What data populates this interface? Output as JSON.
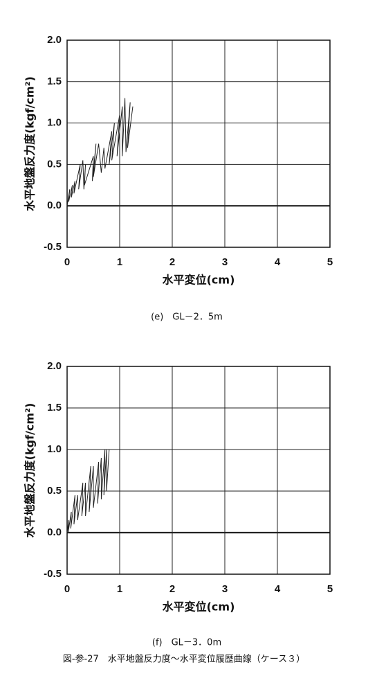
{
  "chart_data": [
    {
      "type": "line",
      "title": "(e)　GL－2．5m",
      "xlabel": "水平変位(cm)",
      "ylabel": "水平地盤反力度(kgf/cm²)",
      "xlim": [
        0,
        5
      ],
      "xticks": [
        0,
        1,
        2,
        3,
        4,
        5
      ],
      "ylim": [
        -0.5,
        2
      ],
      "yticks": [
        -0.5,
        {
          "value": 0,
          "label": "0.0"
        },
        0.5,
        {
          "value": 1,
          "label": "1.0"
        },
        1.5,
        {
          "value": 2,
          "label": "2.0"
        }
      ],
      "grid": true,
      "series": [
        {
          "color": "#222222",
          "x": [
            0,
            0.05,
            0.03,
            0.1,
            0.08,
            0.15,
            0.13,
            0.25,
            0.22,
            0.3,
            0.32,
            0.35,
            0.33,
            0.5,
            0.48,
            0.55,
            0.5,
            0.6,
            0.65,
            0.7,
            0.72,
            0.85,
            0.8,
            0.9,
            0.85,
            1.0,
            0.95,
            1.05,
            1.05,
            1.1,
            1.12,
            1.2,
            1.15,
            1.25
          ],
          "values": [
            0,
            0.2,
            0.05,
            0.25,
            0.1,
            0.3,
            0.15,
            0.5,
            0.2,
            0.55,
            0.2,
            0.5,
            0.25,
            0.6,
            0.3,
            0.75,
            0.35,
            0.75,
            0.4,
            0.7,
            0.45,
            0.9,
            0.5,
            1.0,
            0.55,
            1.1,
            0.6,
            1.2,
            0.6,
            1.3,
            0.65,
            1.25,
            0.7,
            1.2
          ]
        }
      ]
    },
    {
      "type": "line",
      "title": "(f)　GL－3．0m",
      "xlabel": "水平変位(cm)",
      "ylabel": "水平地盤反力度(kgf/cm²)",
      "xlim": [
        0,
        5
      ],
      "xticks": [
        0,
        1,
        2,
        3,
        4,
        5
      ],
      "ylim": [
        -0.5,
        2
      ],
      "yticks": [
        -0.5,
        {
          "value": 0,
          "label": "0.0"
        },
        0.5,
        {
          "value": 1,
          "label": "1.0"
        },
        1.5,
        {
          "value": 2,
          "label": "2.0"
        }
      ],
      "grid": true,
      "series": [
        {
          "color": "#222222",
          "x": [
            0,
            0.03,
            0.02,
            0.08,
            0.07,
            0.15,
            0.13,
            0.2,
            0.2,
            0.3,
            0.28,
            0.35,
            0.35,
            0.45,
            0.42,
            0.5,
            0.5,
            0.6,
            0.58,
            0.65,
            0.65,
            0.72,
            0.7,
            0.75,
            0.75,
            0.8
          ],
          "values": [
            0,
            0.15,
            0.0,
            0.25,
            0.05,
            0.45,
            0.1,
            0.45,
            0.15,
            0.6,
            0.2,
            0.6,
            0.2,
            0.8,
            0.25,
            0.8,
            0.3,
            0.85,
            0.35,
            0.9,
            0.4,
            1.0,
            0.45,
            1.0,
            0.5,
            1.0
          ]
        }
      ]
    }
  ],
  "caption": "図-参-27　水平地盤反力度～水平変位履歴曲線（ケース３）"
}
